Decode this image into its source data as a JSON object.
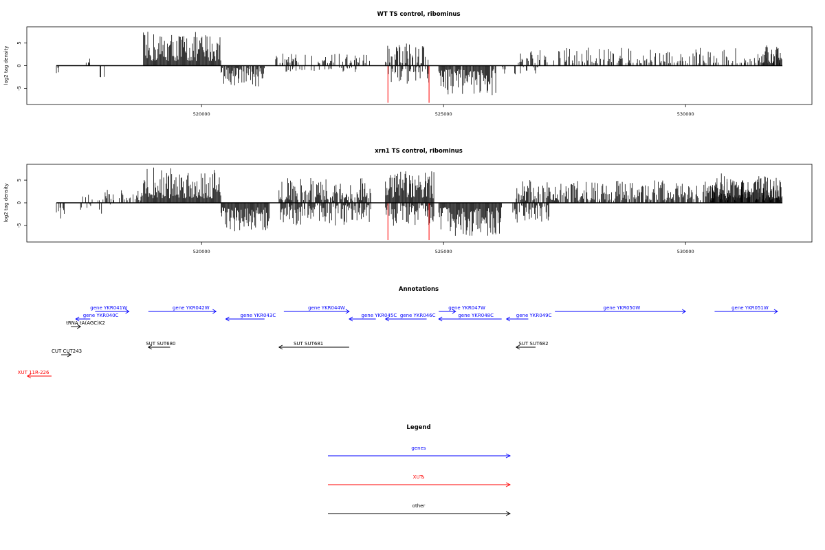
{
  "chart_data": [
    {
      "type": "bar",
      "title": "WT TS control, ribominus",
      "ylabel": "log2 tag density",
      "xlabel": "",
      "yticks": [
        "-5",
        "0",
        "5"
      ],
      "ytick_values": [
        -5,
        0,
        5
      ],
      "xticks": [
        "520000",
        "525000",
        "530000"
      ],
      "xtick_values": [
        520000,
        525000,
        530000
      ],
      "xlim": [
        516500,
        532300
      ],
      "ylim": [
        -8.5,
        8.5
      ],
      "grid": false,
      "segments": [
        {
          "start": 517000,
          "end": 517100,
          "sign": -1,
          "min": 0.5,
          "max": 2.0,
          "density": 0.3
        },
        {
          "start": 517600,
          "end": 517700,
          "sign": 1,
          "min": 0.5,
          "max": 1.8,
          "density": 0.3
        },
        {
          "start": 517900,
          "end": 518000,
          "sign": -1,
          "min": 0.5,
          "max": 2.8,
          "density": 0.3
        },
        {
          "start": 518800,
          "end": 520400,
          "sign": 1,
          "min": 1.0,
          "max": 7.5,
          "density": 1.0
        },
        {
          "start": 520400,
          "end": 521300,
          "sign": -1,
          "min": 0.5,
          "max": 5.5,
          "density": 0.9
        },
        {
          "start": 521500,
          "end": 523500,
          "sign": 1,
          "min": 0.5,
          "max": 2.7,
          "density": 0.35
        },
        {
          "start": 521700,
          "end": 523200,
          "sign": -1,
          "min": 0.3,
          "max": 1.5,
          "density": 0.25
        },
        {
          "start": 523800,
          "end": 524700,
          "sign": 1,
          "min": 0.5,
          "max": 5.5,
          "density": 0.6
        },
        {
          "start": 523800,
          "end": 524700,
          "sign": -1,
          "min": 0.3,
          "max": 4.0,
          "density": 0.4
        },
        {
          "start": 524900,
          "end": 526100,
          "sign": -1,
          "min": 0.8,
          "max": 6.5,
          "density": 0.9
        },
        {
          "start": 526200,
          "end": 527000,
          "sign": -1,
          "min": 0.3,
          "max": 2.0,
          "density": 0.3
        },
        {
          "start": 526500,
          "end": 532000,
          "sign": 1,
          "min": 0.5,
          "max": 4.0,
          "density": 0.5
        },
        {
          "start": 531600,
          "end": 532000,
          "sign": 1,
          "min": 0.5,
          "max": 4.5,
          "density": 0.7
        }
      ],
      "red_lines": [
        {
          "x": 523850,
          "y": -8.2
        },
        {
          "x": 524700,
          "y": -8.2
        }
      ]
    },
    {
      "type": "bar",
      "title": "xrn1 TS control, ribominus",
      "ylabel": "log2 tag density",
      "xlabel": "",
      "yticks": [
        "-5",
        "0",
        "5"
      ],
      "ytick_values": [
        -5,
        0,
        5
      ],
      "xticks": [
        "520000",
        "525000",
        "530000"
      ],
      "xtick_values": [
        520000,
        525000,
        530000
      ],
      "xlim": [
        516500,
        532300
      ],
      "ylim": [
        -8.5,
        8.5
      ],
      "grid": false,
      "segments": [
        {
          "start": 517000,
          "end": 517200,
          "sign": -1,
          "min": 0.5,
          "max": 4.2,
          "density": 0.5
        },
        {
          "start": 517500,
          "end": 518200,
          "sign": 1,
          "min": 0.5,
          "max": 3.0,
          "density": 0.4
        },
        {
          "start": 517500,
          "end": 518200,
          "sign": -1,
          "min": 0.3,
          "max": 2.5,
          "density": 0.3
        },
        {
          "start": 518300,
          "end": 518800,
          "sign": 1,
          "min": 0.5,
          "max": 3.0,
          "density": 0.5
        },
        {
          "start": 518800,
          "end": 520400,
          "sign": 1,
          "min": 1.0,
          "max": 8.0,
          "density": 1.0
        },
        {
          "start": 520400,
          "end": 521400,
          "sign": -1,
          "min": 1.0,
          "max": 6.5,
          "density": 1.0
        },
        {
          "start": 521600,
          "end": 523500,
          "sign": 1,
          "min": 0.5,
          "max": 5.5,
          "density": 0.8
        },
        {
          "start": 521600,
          "end": 523500,
          "sign": -1,
          "min": 0.5,
          "max": 5.0,
          "density": 0.7
        },
        {
          "start": 523800,
          "end": 524800,
          "sign": 1,
          "min": 1.0,
          "max": 7.0,
          "density": 1.0
        },
        {
          "start": 523800,
          "end": 524800,
          "sign": -1,
          "min": 0.5,
          "max": 5.5,
          "density": 0.8
        },
        {
          "start": 524900,
          "end": 526200,
          "sign": -1,
          "min": 1.0,
          "max": 7.5,
          "density": 1.0
        },
        {
          "start": 526400,
          "end": 527200,
          "sign": -1,
          "min": 0.5,
          "max": 4.5,
          "density": 0.7
        },
        {
          "start": 526500,
          "end": 532000,
          "sign": 1,
          "min": 0.5,
          "max": 5.0,
          "density": 0.8
        },
        {
          "start": 530500,
          "end": 532000,
          "sign": 1,
          "min": 1.0,
          "max": 6.5,
          "density": 1.0
        }
      ],
      "red_lines": [
        {
          "x": 523850,
          "y": -8.2
        },
        {
          "x": 524700,
          "y": -8.2
        }
      ]
    }
  ],
  "annotations": {
    "title": "Annotations",
    "colors": {
      "gene": "#0000ff",
      "xut": "#ff0000",
      "other": "#000000"
    },
    "items": [
      {
        "label": "gene YKR041W",
        "kind": "gene",
        "dir": 1,
        "start": 517800,
        "end": 518500,
        "row": 0,
        "label_at": 517700
      },
      {
        "label": "gene YKR042W",
        "kind": "gene",
        "dir": 1,
        "start": 518900,
        "end": 520300,
        "row": 0,
        "label_at": 519400
      },
      {
        "label": "gene YKR040C",
        "kind": "gene",
        "dir": -1,
        "start": 517400,
        "end": 517700,
        "row": 1,
        "label_at": 517550
      },
      {
        "label": "gene YKR043C",
        "kind": "gene",
        "dir": -1,
        "start": 520500,
        "end": 521300,
        "row": 1,
        "label_at": 520800
      },
      {
        "label": "gene YKR044W",
        "kind": "gene",
        "dir": 1,
        "start": 521700,
        "end": 523050,
        "row": 0,
        "label_at": 522200
      },
      {
        "label": "gene YKR045C",
        "kind": "gene",
        "dir": -1,
        "start": 523050,
        "end": 523600,
        "row": 1,
        "label_at": 523300
      },
      {
        "label": "gene YKR046C",
        "kind": "gene",
        "dir": -1,
        "start": 523800,
        "end": 524650,
        "row": 1,
        "label_at": 524100
      },
      {
        "label": "gene YKR047W",
        "kind": "gene",
        "dir": 1,
        "start": 524900,
        "end": 525250,
        "row": 0,
        "label_at": 525100
      },
      {
        "label": "gene YKR048C",
        "kind": "gene",
        "dir": -1,
        "start": 524900,
        "end": 526200,
        "row": 1,
        "label_at": 525300
      },
      {
        "label": "gene YKR049C",
        "kind": "gene",
        "dir": -1,
        "start": 526300,
        "end": 526750,
        "row": 1,
        "label_at": 526500
      },
      {
        "label": "gene YKR050W",
        "kind": "gene",
        "dir": 1,
        "start": 527300,
        "end": 530000,
        "row": 0,
        "label_at": 528300
      },
      {
        "label": "gene YKR051W",
        "kind": "gene",
        "dir": 1,
        "start": 530600,
        "end": 531900,
        "row": 0,
        "label_at": 530950
      },
      {
        "label": "tRNA tA(AGC)K2",
        "kind": "other",
        "dir": 1,
        "start": 517300,
        "end": 517500,
        "row": 2,
        "label_at": 517200
      },
      {
        "label": "SUT SUT680",
        "kind": "other",
        "dir": -1,
        "start": 518900,
        "end": 519350,
        "row": 3,
        "label_at": 518850
      },
      {
        "label": "SUT SUT681",
        "kind": "other",
        "dir": -1,
        "start": 521600,
        "end": 523050,
        "row": 3,
        "label_at": 521900
      },
      {
        "label": "SUT SUT682",
        "kind": "other",
        "dir": -1,
        "start": 526500,
        "end": 526900,
        "row": 3,
        "label_at": 526550
      },
      {
        "label": "CUT CUT243",
        "kind": "other",
        "dir": 1,
        "start": 517100,
        "end": 517300,
        "row": 4,
        "label_at": 516900
      },
      {
        "label": "XUT 11R-226",
        "kind": "xut",
        "dir": -1,
        "start": 516400,
        "end": 516900,
        "row": 5,
        "label_at": 516200
      }
    ]
  },
  "legend": {
    "title": "Legend",
    "items": [
      {
        "label": "genes",
        "color": "#0000ff"
      },
      {
        "label": "XUTs",
        "color": "#ff0000"
      },
      {
        "label": "other",
        "color": "#000000"
      }
    ]
  }
}
